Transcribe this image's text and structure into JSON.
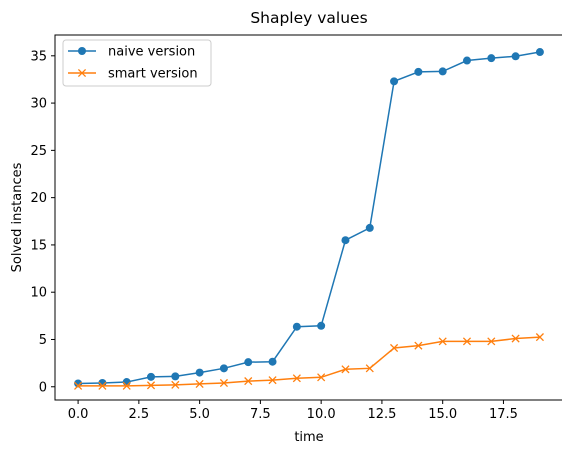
{
  "chart_data": {
    "type": "line",
    "title": "Shapley values",
    "xlabel": "time",
    "ylabel": "Solved instances",
    "xlim": [
      -0.95,
      19.95
    ],
    "ylim": [
      -1.4,
      37.2
    ],
    "xticks": [
      0,
      2.5,
      5,
      7.5,
      10,
      12.5,
      15,
      17.5
    ],
    "xtick_labels": [
      "0.0",
      "2.5",
      "5.0",
      "7.5",
      "10.0",
      "12.5",
      "15.0",
      "17.5"
    ],
    "yticks": [
      0,
      5,
      10,
      15,
      20,
      25,
      30,
      35
    ],
    "ytick_labels": [
      "0",
      "5",
      "10",
      "15",
      "20",
      "25",
      "30",
      "35"
    ],
    "grid": false,
    "legend_position": "top-left",
    "x": [
      0,
      1,
      2,
      3,
      4,
      5,
      6,
      7,
      8,
      9,
      10,
      11,
      12,
      13,
      14,
      15,
      16,
      17,
      18,
      19
    ],
    "series": [
      {
        "name": "naive version",
        "marker": "circle",
        "color": "#1f77b4",
        "values": [
          0.35,
          0.4,
          0.5,
          1.05,
          1.1,
          1.5,
          1.95,
          2.6,
          2.65,
          6.35,
          6.45,
          15.5,
          16.8,
          32.3,
          33.3,
          33.35,
          34.5,
          34.75,
          34.95,
          35.4
        ]
      },
      {
        "name": "smart version",
        "marker": "x",
        "color": "#ff7f0e",
        "values": [
          0.1,
          0.1,
          0.1,
          0.15,
          0.2,
          0.3,
          0.4,
          0.6,
          0.7,
          0.9,
          1.0,
          1.85,
          1.95,
          4.1,
          4.35,
          4.8,
          4.8,
          4.8,
          5.1,
          5.25
        ]
      }
    ]
  }
}
